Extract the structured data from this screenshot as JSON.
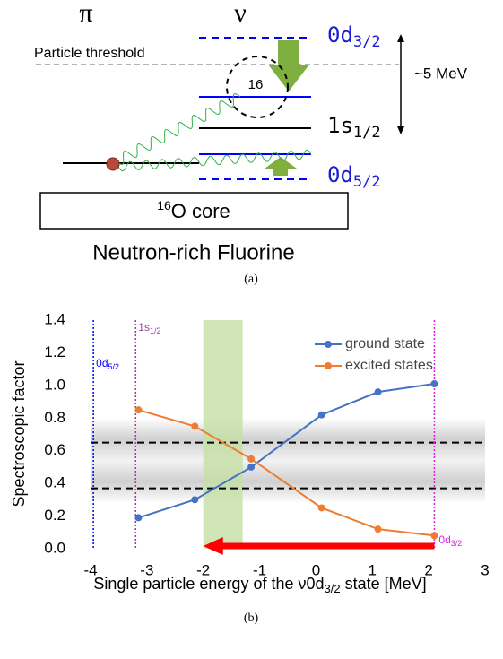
{
  "diagram": {
    "proton_label": "π",
    "neutron_label": "ν",
    "threshold_label": "Particle threshold",
    "orbit_d32": {
      "main": "0d",
      "sub": "3/2"
    },
    "orbit_s12": {
      "main": "1s",
      "sub": "1/2"
    },
    "orbit_d52": {
      "main": "0d",
      "sub": "5/2"
    },
    "circle_label": "16",
    "gap_label": "~5 MeV",
    "core": {
      "sup": "16",
      "main": "O core"
    },
    "title": "Neutron-rich Fluorine",
    "caption": "(a)"
  },
  "chart_data": {
    "type": "line",
    "caption": "(b)",
    "xlabel": {
      "before": "Single particle energy of the ν0d",
      "sub": "3/2",
      "after": "state [MeV]"
    },
    "ylabel": "Spectroscopic factor",
    "x": [
      -3.15,
      -2.15,
      -1.15,
      0.1,
      1.1,
      2.1
    ],
    "series": [
      {
        "name": "ground state",
        "color": "#4472c4",
        "values": [
          0.19,
          0.3,
          0.5,
          0.82,
          0.96,
          1.01
        ]
      },
      {
        "name": "excited states",
        "color": "#ed7d31",
        "values": [
          0.85,
          0.75,
          0.55,
          0.25,
          0.12,
          0.08
        ]
      }
    ],
    "xlim": [
      -4,
      3
    ],
    "xticks": [
      -4,
      -3,
      -2,
      -1,
      0,
      1,
      2,
      3
    ],
    "ylim": [
      0,
      1.4
    ],
    "yticks": [
      {
        "value": 0,
        "label": "0.0"
      },
      0.2,
      0.4,
      0.6,
      0.8,
      {
        "value": 1,
        "label": "1.0"
      },
      1.2,
      1.4
    ],
    "legend": "upper right",
    "grid": false,
    "hlines": [
      0.65,
      0.37
    ],
    "shaded_band": [
      0.28,
      0.8
    ],
    "green_band": [
      -2,
      -1.3
    ],
    "vlines": [
      {
        "value": -3.95,
        "color": "#0000ff",
        "label": {
          "main": "0d",
          "sub": "5/2"
        }
      },
      {
        "value": -3.2,
        "color": "#9b3fa0",
        "label": {
          "main": "1s",
          "sub": "1/2"
        }
      },
      {
        "value": 2.1,
        "color": "#e020e0",
        "label": {
          "main": "0d",
          "sub": "3/2"
        }
      }
    ],
    "arrow": {
      "from": 2.1,
      "to": -2.0,
      "y": 0,
      "color": "#ff0000"
    }
  }
}
